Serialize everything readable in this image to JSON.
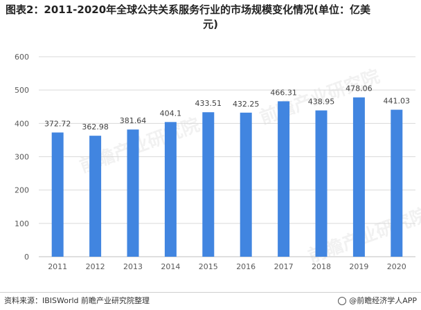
{
  "title_line1": "图表2：2011-2020年全球公共关系服务行业的市场规模变化情况(单位：亿美",
  "title_line2": "元)",
  "footer": {
    "source": "资料来源：IBISWorld 前瞻产业研究院整理",
    "brand": "@前瞻经济学人APP"
  },
  "watermark": "前瞻产业研究院",
  "colors": {
    "bar": "#4185E0",
    "grid": "#d9d9d9",
    "axis": "#bfbfbf"
  },
  "chart_data": {
    "type": "bar",
    "categories": [
      "2011",
      "2012",
      "2013",
      "2014",
      "2015",
      "2016",
      "2017",
      "2018",
      "2019",
      "2020"
    ],
    "values": [
      372.72,
      362.98,
      381.64,
      404.1,
      433.51,
      432.25,
      466.31,
      438.95,
      478.06,
      441.03
    ],
    "value_labels": [
      "372.72",
      "362.98",
      "381.64",
      "404.1",
      "433.51",
      "432.25",
      "466.31",
      "438.95",
      "478.06",
      "441.03"
    ],
    "ylim": [
      0,
      600
    ],
    "yticks": [
      0,
      100,
      200,
      300,
      400,
      500,
      600
    ],
    "grid": true,
    "title": "",
    "xlabel": "",
    "ylabel": ""
  }
}
